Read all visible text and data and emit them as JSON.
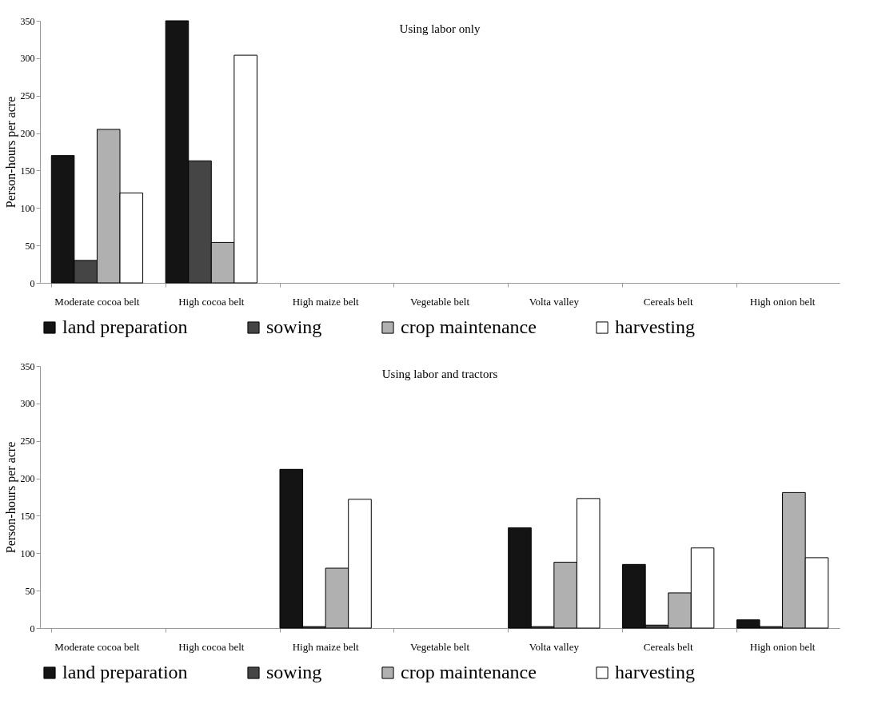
{
  "chart_data": [
    {
      "type": "bar",
      "title": "Using labor only",
      "ylabel": "Person-hours per acre",
      "categories": [
        "Moderate cocoa belt",
        "High cocoa belt",
        "High maize belt",
        "Vegetable belt",
        "Volta valley",
        "Cereals belt",
        "High onion belt"
      ],
      "series": [
        {
          "name": "land preparation",
          "color": "#141414",
          "values": [
            170,
            350,
            null,
            null,
            null,
            null,
            null
          ]
        },
        {
          "name": "sowing",
          "color": "#454545",
          "values": [
            30,
            163,
            null,
            null,
            null,
            null,
            null
          ]
        },
        {
          "name": "crop maintenance",
          "color": "#b0b0b0",
          "values": [
            205,
            54,
            null,
            null,
            null,
            null,
            null
          ]
        },
        {
          "name": "harvesting",
          "color": "#ffffff",
          "values": [
            120,
            304,
            null,
            null,
            null,
            null,
            null
          ]
        }
      ],
      "ylim": [
        0,
        350
      ],
      "yticks": [
        0,
        50,
        100,
        150,
        200,
        250,
        300,
        350
      ],
      "grid": false,
      "legend": "bottom"
    },
    {
      "type": "bar",
      "title": "Using labor and tractors",
      "ylabel": "Person-hours per acre",
      "categories": [
        "Moderate cocoa belt",
        "High cocoa belt",
        "High maize belt",
        "Vegetable belt",
        "Volta valley",
        "Cereals belt",
        "High onion belt"
      ],
      "series": [
        {
          "name": "land preparation",
          "color": "#141414",
          "values": [
            null,
            null,
            212,
            null,
            134,
            85,
            11
          ]
        },
        {
          "name": "sowing",
          "color": "#454545",
          "values": [
            null,
            null,
            2,
            null,
            2,
            4,
            2
          ]
        },
        {
          "name": "crop maintenance",
          "color": "#b0b0b0",
          "values": [
            null,
            null,
            80,
            null,
            88,
            47,
            181
          ]
        },
        {
          "name": "harvesting",
          "color": "#ffffff",
          "values": [
            null,
            null,
            172,
            null,
            173,
            107,
            94
          ]
        }
      ],
      "ylim": [
        0,
        350
      ],
      "yticks": [
        0,
        50,
        100,
        150,
        200,
        250,
        300,
        350
      ],
      "grid": false,
      "legend": "bottom"
    }
  ]
}
